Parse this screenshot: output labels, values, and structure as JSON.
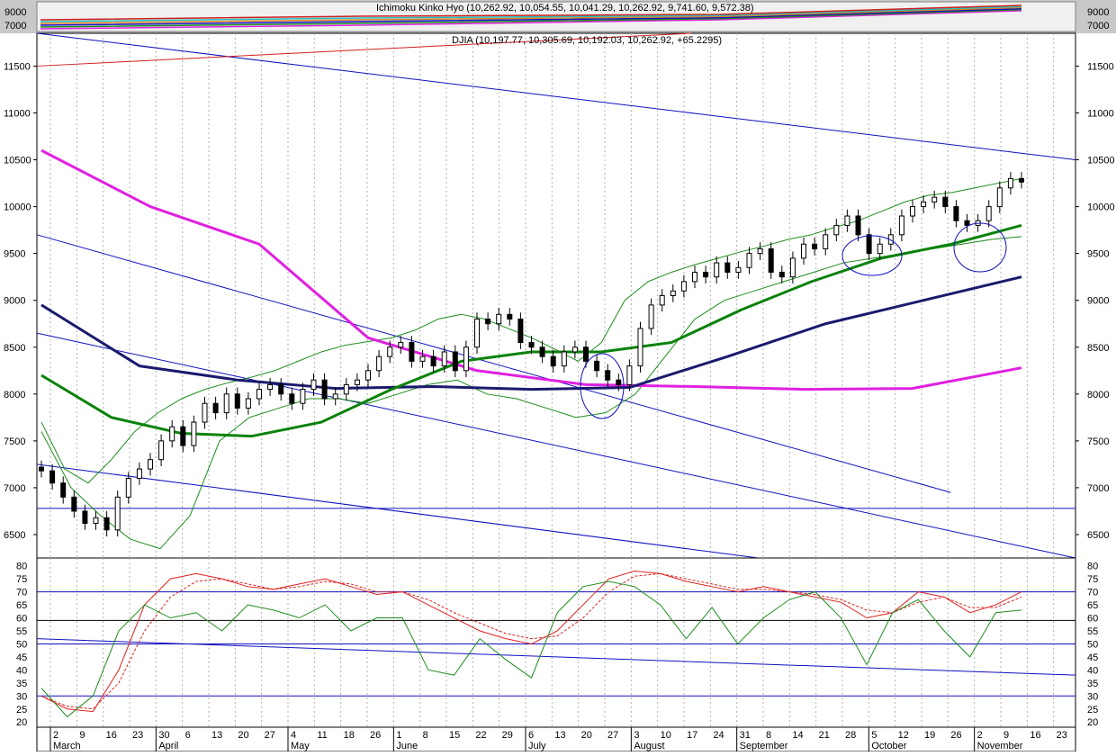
{
  "colors": {
    "background": "#ffffff",
    "grid": "#b0b0b0",
    "candle": "#000000",
    "bollinger": "#1e8c1e",
    "ma_mid": "#0a820a",
    "ma_long": "#1a1a6e",
    "ma_magenta": "#e020e0",
    "trendline": "#1010c0",
    "osc_red": "#e02020",
    "osc_green": "#1e8c1e"
  },
  "chart_data": [
    {
      "type": "line",
      "name": "ichimoku-overview-strip",
      "title": "Ichimoku Kinko Hyo (10,262.92, 10,054.55, 10,041.29, 10,262.92, 9,741.60, 9,572.38)",
      "y_ticks": [
        "9000",
        "7000"
      ],
      "ylim": [
        6600,
        10500
      ]
    },
    {
      "type": "candlestick",
      "name": "djia-price-panel",
      "title": "DJIA (10,197.77, 10,305.69, 10,192.03, 10,262.92, +65.2295)",
      "ylim": [
        6250,
        11850
      ],
      "y_ticks": [
        6500,
        7000,
        7500,
        8000,
        8500,
        9000,
        9500,
        10000,
        10500,
        11000,
        11500
      ],
      "x_labels": [
        "2",
        "9",
        "16",
        "23",
        "30",
        "6",
        "13",
        "20",
        "27",
        "4",
        "11",
        "18",
        "26",
        "1",
        "8",
        "15",
        "22",
        "29",
        "6",
        "13",
        "20",
        "27",
        "3",
        "10",
        "17",
        "24",
        "31",
        "8",
        "14",
        "21",
        "28",
        "5",
        "12",
        "19",
        "26",
        "2",
        "9",
        "16",
        "23"
      ],
      "months": [
        "March",
        "April",
        "May",
        "June",
        "July",
        "August",
        "September",
        "October",
        "November"
      ],
      "close_series": [
        7180,
        7050,
        6900,
        6750,
        6620,
        6680,
        6550,
        6900,
        7100,
        7200,
        7300,
        7500,
        7650,
        7450,
        7700,
        7900,
        7800,
        8000,
        7850,
        7950,
        8050,
        8100,
        8000,
        7900,
        8050,
        8150,
        7950,
        8000,
        8100,
        8150,
        8250,
        8400,
        8500,
        8550,
        8350,
        8400,
        8300,
        8450,
        8250,
        8500,
        8800,
        8750,
        8850,
        8800,
        8550,
        8500,
        8400,
        8300,
        8450,
        8500,
        8350,
        8250,
        8150,
        8100,
        8300,
        8700,
        8950,
        9050,
        9100,
        9200,
        9300,
        9250,
        9400,
        9300,
        9350,
        9500,
        9550,
        9300,
        9250,
        9450,
        9600,
        9550,
        9700,
        9800,
        9900,
        9700,
        9500,
        9600,
        9700,
        9900,
        10000,
        10050,
        10100,
        10000,
        9850,
        9800,
        9850,
        10000,
        10200,
        10300,
        10263
      ],
      "bollinger_upper": [
        7700,
        7200,
        7050,
        7300,
        7600,
        7800,
        7950,
        8050,
        8120,
        8180,
        8250,
        8350,
        8450,
        8520,
        8560,
        8600,
        8680,
        8800,
        8850,
        8800,
        8700,
        8600,
        8480,
        8350,
        8550,
        9000,
        9200,
        9300,
        9380,
        9450,
        9520,
        9580,
        9650,
        9700,
        9780,
        9850,
        9950,
        10050,
        10120,
        10150,
        10200,
        10250,
        10300
      ],
      "bollinger_lower": [
        7600,
        7000,
        6700,
        6450,
        6350,
        6700,
        7500,
        7750,
        7850,
        7950,
        7950,
        7900,
        8000,
        8100,
        8150,
        8000,
        7950,
        7850,
        7750,
        7800,
        8000,
        8400,
        8800,
        9000,
        9100,
        9200,
        9300,
        9400,
        9450,
        9500,
        9550,
        9600,
        9650,
        9680
      ],
      "ma_green": [
        8200,
        7750,
        7580,
        7550,
        7700,
        8050,
        8350,
        8450,
        8450,
        8550,
        8900,
        9200,
        9450,
        9600,
        9800
      ],
      "ma_navy": [
        8950,
        8300,
        8150,
        8060,
        8080,
        8050,
        8070,
        8400,
        8750,
        9000,
        9250
      ],
      "ma_magenta": [
        10600,
        10000,
        9600,
        8600,
        8250,
        8100,
        8080,
        8050,
        8060,
        8280
      ],
      "trendlines": [
        {
          "from": [
            0,
            11850
          ],
          "to": [
            108,
            10500
          ]
        },
        {
          "from": [
            0,
            9700
          ],
          "to": [
            95,
            6950
          ]
        },
        {
          "from": [
            0,
            8650
          ],
          "to": [
            108,
            6250
          ]
        },
        {
          "from": [
            0,
            7250
          ],
          "to": [
            75,
            6250
          ]
        },
        {
          "from": [
            0,
            6780
          ],
          "to": [
            108,
            6780
          ]
        },
        {
          "from": [
            0,
            11500
          ],
          "to": [
            68,
            11850
          ]
        }
      ],
      "annotations": [
        "circle-july-low",
        "circle-october-low",
        "circle-november-low"
      ]
    },
    {
      "type": "line",
      "name": "oscillator-panel",
      "ylim": [
        18,
        83
      ],
      "y_ticks": [
        20,
        25,
        30,
        35,
        40,
        45,
        50,
        55,
        60,
        65,
        70,
        75,
        80
      ],
      "horizontal_levels": [
        70,
        59,
        50,
        30
      ],
      "series": [
        {
          "style": "solid-red",
          "values": [
            30,
            25,
            24,
            40,
            65,
            75,
            77,
            75,
            72,
            71,
            73,
            75,
            72,
            69,
            70,
            65,
            60,
            55,
            52,
            50,
            55,
            65,
            75,
            78,
            77,
            74,
            72,
            70,
            72,
            70,
            68,
            66,
            60,
            62,
            70,
            68,
            62,
            65,
            70
          ]
        },
        {
          "style": "dashed-red",
          "values": [
            30,
            26,
            25,
            35,
            55,
            68,
            74,
            75,
            73,
            71,
            72,
            74,
            73,
            70,
            70,
            67,
            62,
            58,
            54,
            52,
            53,
            60,
            70,
            76,
            77,
            75,
            73,
            71,
            71,
            70,
            69,
            67,
            63,
            62,
            66,
            68,
            64,
            64,
            68
          ]
        },
        {
          "style": "solid-green",
          "values": [
            33,
            22,
            30,
            55,
            65,
            60,
            62,
            55,
            65,
            63,
            60,
            65,
            55,
            60,
            60,
            40,
            38,
            52,
            44,
            37,
            62,
            72,
            74,
            72,
            65,
            52,
            64,
            50,
            60,
            67,
            70,
            60,
            42,
            62,
            67,
            55,
            45,
            62,
            63
          ]
        }
      ]
    }
  ]
}
